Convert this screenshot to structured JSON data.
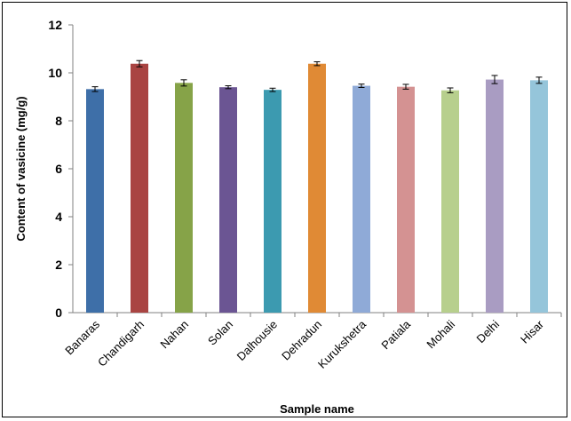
{
  "chart_data": {
    "type": "bar",
    "title": "",
    "xlabel": "Sample name",
    "ylabel": "Content of vasicine (mg/g)",
    "ylim": [
      0,
      12
    ],
    "yticks": [
      0,
      2,
      4,
      6,
      8,
      10,
      12
    ],
    "grid": false,
    "categories": [
      "Banaras",
      "Chandigarh",
      "Nahan",
      "Solan",
      "Dalhousie",
      "Dehradun",
      "Kurukshetra",
      "Patiala",
      "Mohali",
      "Delhi",
      "Hisar"
    ],
    "values": [
      9.32,
      10.38,
      9.58,
      9.4,
      9.29,
      10.38,
      9.46,
      9.42,
      9.27,
      9.72,
      9.69
    ],
    "errors": [
      0.1,
      0.13,
      0.13,
      0.06,
      0.07,
      0.08,
      0.07,
      0.1,
      0.1,
      0.17,
      0.13
    ],
    "colors": [
      "#3e6fa8",
      "#a94442",
      "#86a348",
      "#6b5593",
      "#3c9ab0",
      "#e08a35",
      "#8faad7",
      "#d49292",
      "#b7cf8d",
      "#a99cc2",
      "#95c5da"
    ]
  }
}
